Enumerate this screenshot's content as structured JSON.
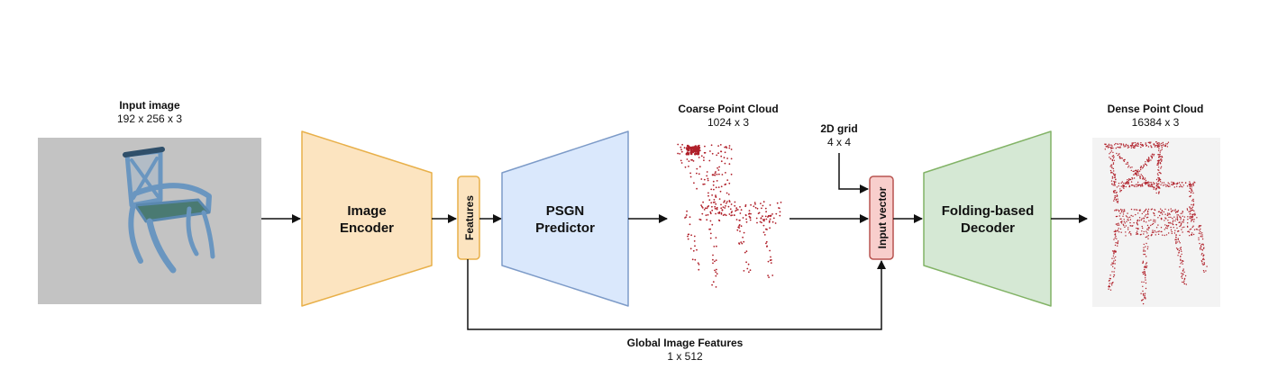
{
  "input_image": {
    "title": "Input image",
    "size": "192 x 256 x 3"
  },
  "image_encoder": {
    "line1": "Image",
    "line2": "Encoder"
  },
  "features": {
    "label": "Features"
  },
  "psgn": {
    "line1": "PSGN",
    "line2": "Predictor"
  },
  "coarse_cloud": {
    "title": "Coarse Point Cloud",
    "size": "1024 x 3"
  },
  "grid_2d": {
    "title": "2D grid",
    "size": "4 x 4"
  },
  "input_vector": {
    "label": "Input vector"
  },
  "folding_decoder": {
    "line1": "Folding-based",
    "line2": "Decoder"
  },
  "dense_cloud": {
    "title": "Dense Point Cloud",
    "size": "16384 x 3"
  },
  "global_features": {
    "title": "Global Image Features",
    "size": "1 x 512"
  },
  "colors": {
    "encoder_fill": "#fce4c0",
    "encoder_stroke": "#e8b04a",
    "psgn_fill": "#dae8fc",
    "psgn_stroke": "#7d9bc8",
    "decoder_fill": "#d5e8d4",
    "decoder_stroke": "#82b366",
    "vector_fill": "#f8cecc",
    "vector_stroke": "#b85450",
    "points": "#b0202a",
    "chair": "#6a96c0"
  }
}
